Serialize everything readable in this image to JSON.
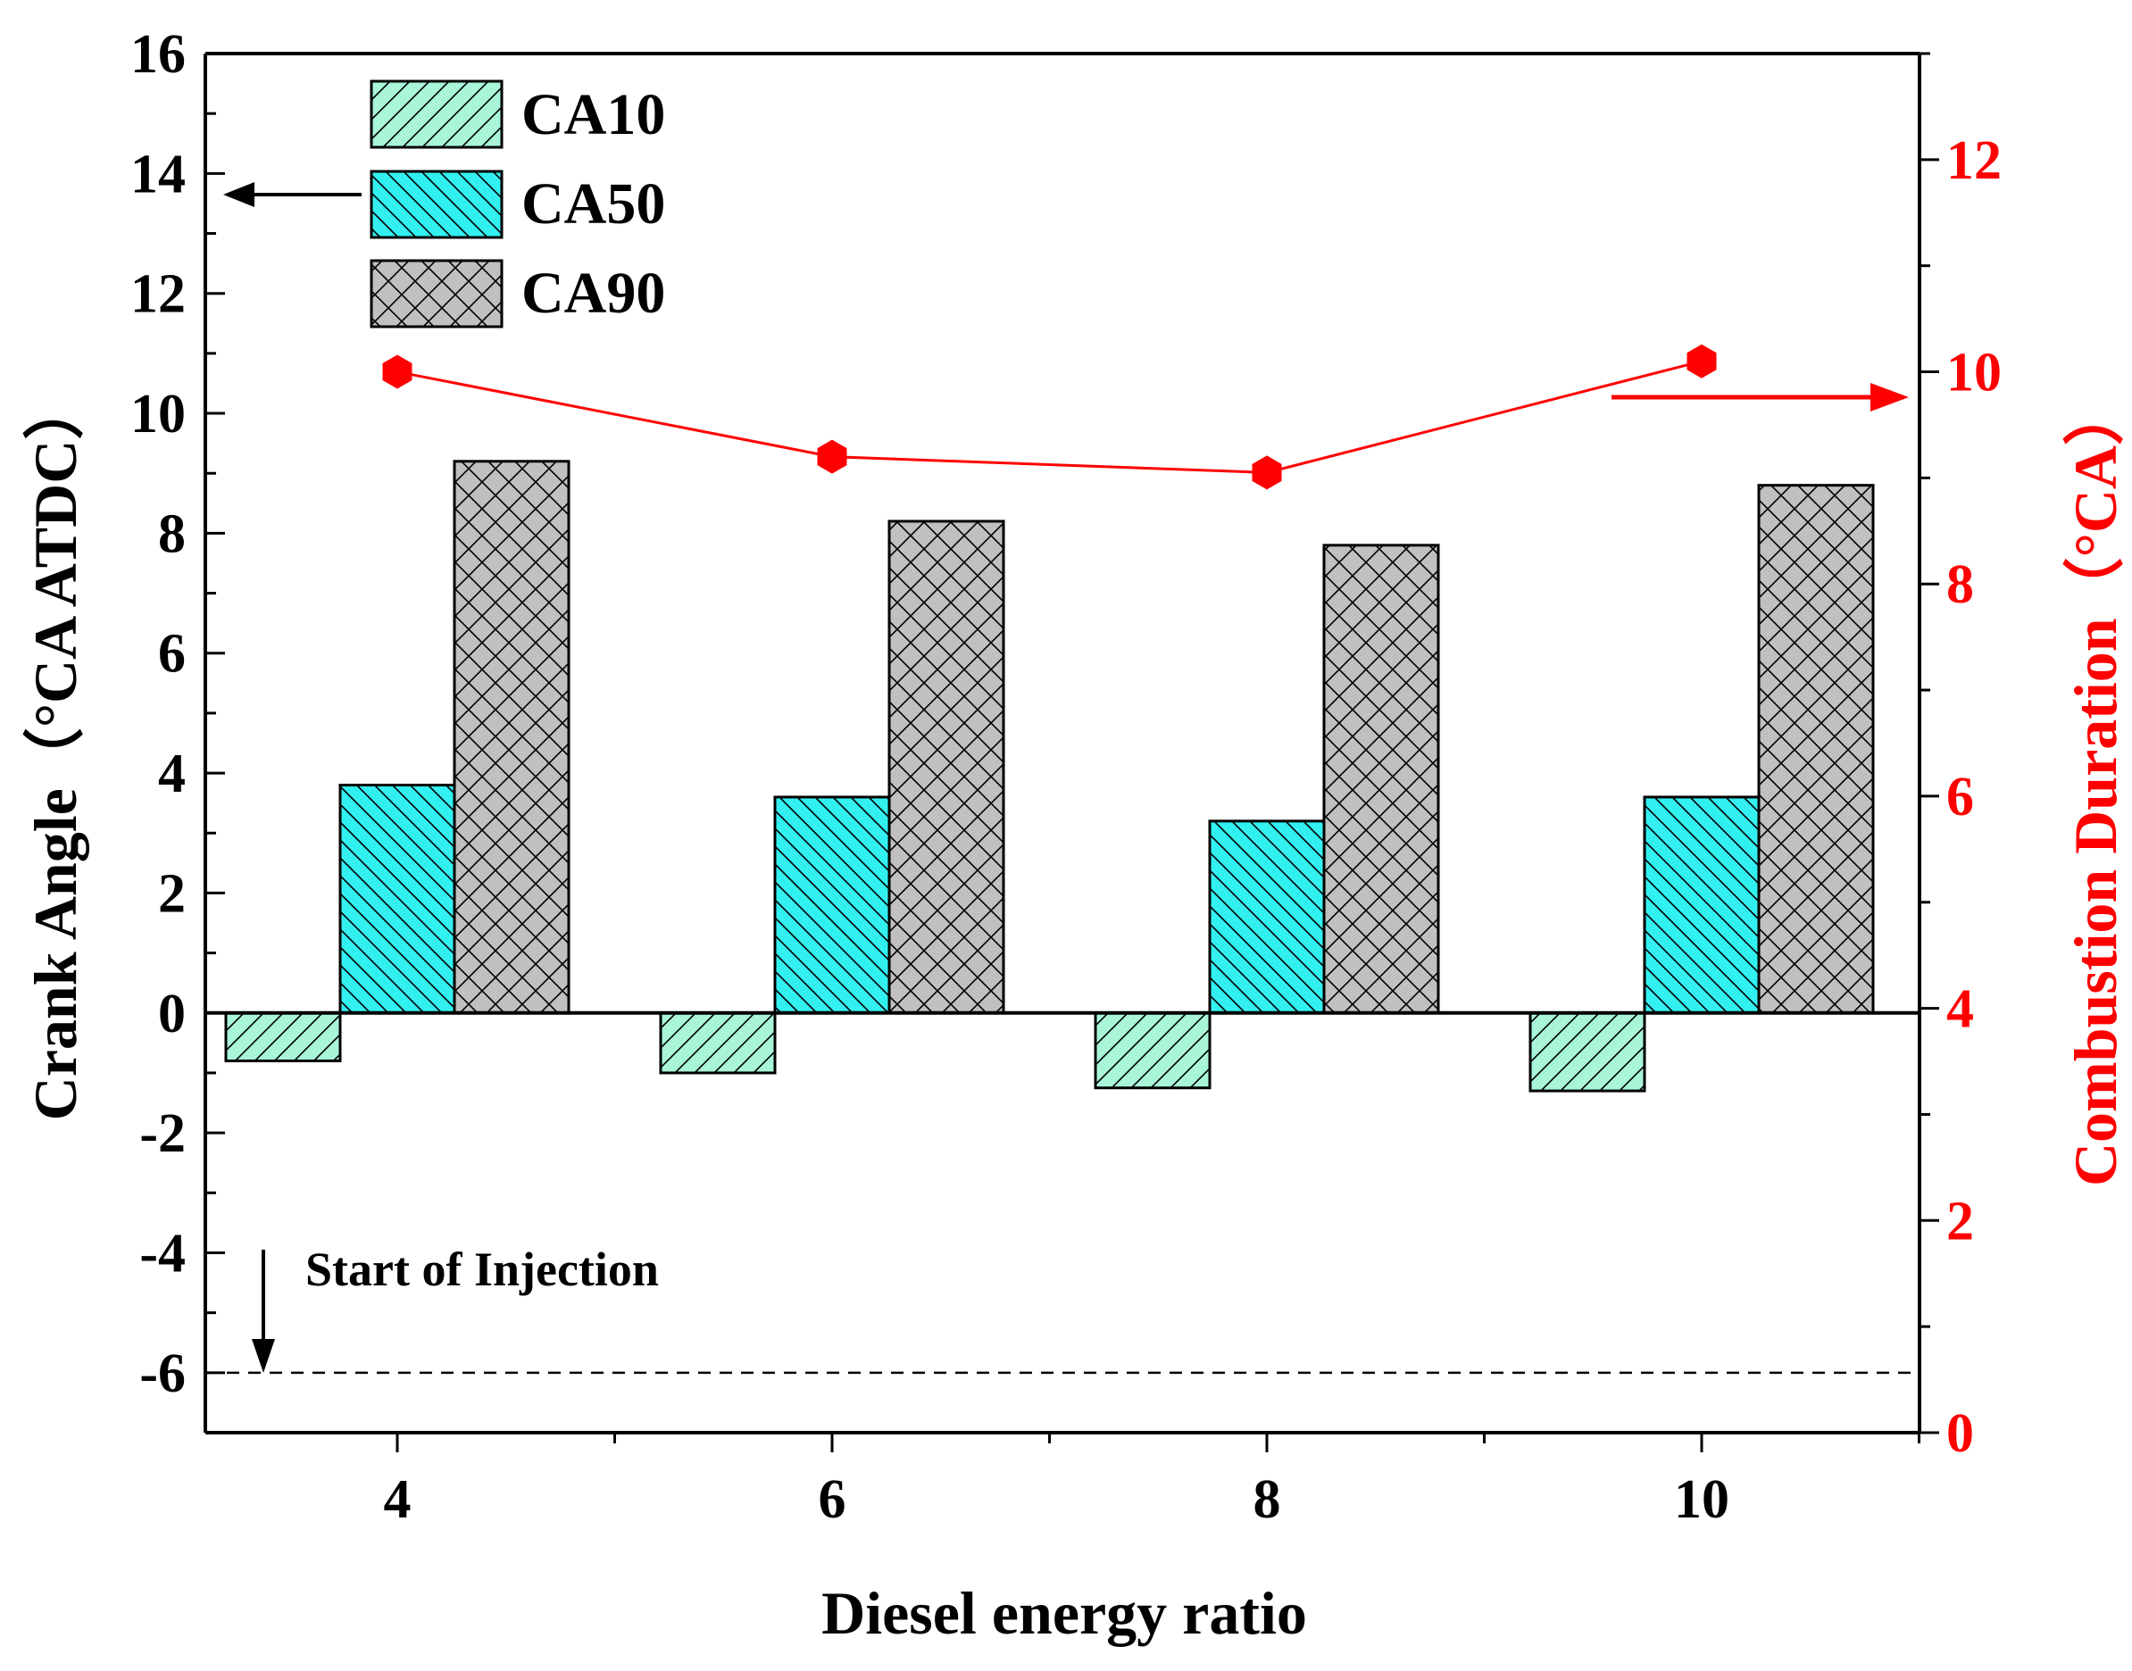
{
  "chart_data": {
    "type": "bar",
    "xlabel": "Diesel energy ratio",
    "ylabel": "Crank Angle（°CA ATDC）",
    "y2label": "Combustion Duration（°CA）",
    "categories": [
      "4",
      "6",
      "8",
      "10"
    ],
    "ylim": [
      -7,
      16
    ],
    "yticks": [
      "16",
      "14",
      "12",
      "10",
      "8",
      "6",
      "4",
      "2",
      "0",
      "-2",
      "-4",
      "-6"
    ],
    "y2lim": [
      0,
      13
    ],
    "y2ticks": [
      "12",
      "10",
      "8",
      "6",
      "4",
      "2",
      "0"
    ],
    "series": [
      {
        "name": "CA10",
        "values": [
          -0.8,
          -1.0,
          -1.25,
          -1.3
        ],
        "color": "#a8f5d8",
        "pattern": "diagonal-hatch"
      },
      {
        "name": "CA50",
        "values": [
          3.8,
          3.6,
          3.2,
          3.6
        ],
        "color": "#33f0f0",
        "pattern": "back-diagonal-hatch"
      },
      {
        "name": "CA90",
        "values": [
          9.2,
          8.2,
          7.8,
          8.8
        ],
        "color": "#c0c0c0",
        "pattern": "crosshatch"
      }
    ],
    "line_series": {
      "name": "Combustion Duration",
      "axis": "right",
      "values": [
        10.0,
        9.2,
        9.05,
        10.1
      ],
      "color": "#ff0000",
      "marker": "hexagon"
    },
    "reference_line": {
      "y": -6,
      "style": "dashed",
      "color": "#000000"
    },
    "annotation": "Start of Injection",
    "legend": "top-left",
    "axis_arrows": {
      "left": "points to left axis",
      "right": "points to right axis"
    }
  }
}
